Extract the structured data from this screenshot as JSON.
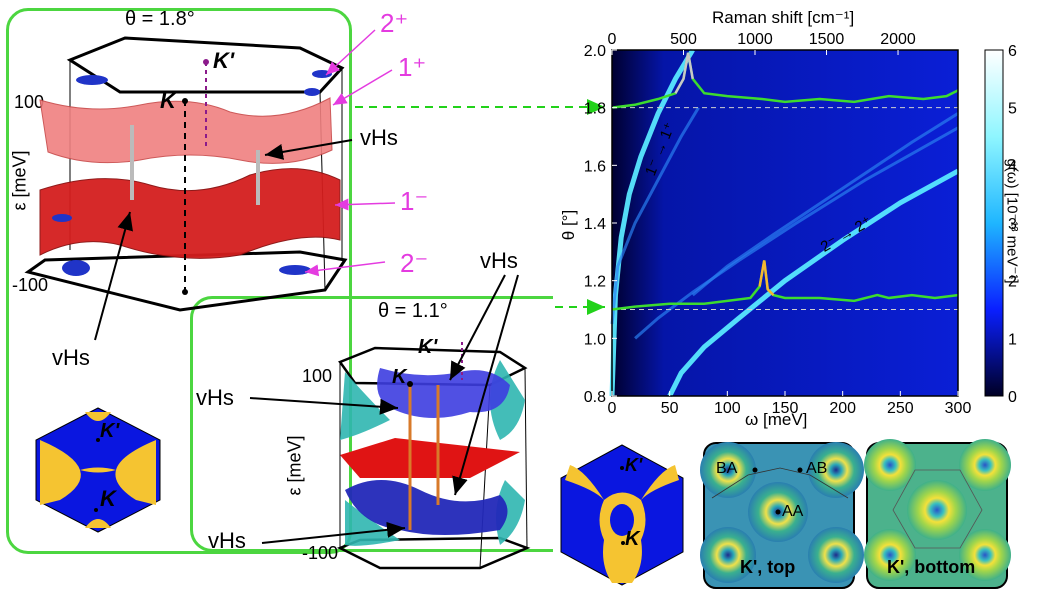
{
  "panel_a": {
    "title": "θ = 1.8°",
    "ylabel": "ε [meV]",
    "tick_top": "100",
    "tick_bottom": "-100",
    "k_label": "K",
    "kp_label": "K'",
    "band_labels": {
      "b2p": "2⁺",
      "b1p": "1⁺",
      "b1m": "1⁻",
      "b2m": "2⁻"
    },
    "vhs_upper": "vHs",
    "vhs_lower": "vHs",
    "bz_k": "K",
    "bz_kp": "K'"
  },
  "panel_b": {
    "title": "θ = 1.1°",
    "ylabel": "ε [meV]",
    "tick_top": "100",
    "tick_bottom": "-100",
    "k_label": "K",
    "kp_label": "K'",
    "vhs_top_right": "vHs",
    "vhs_mid_left": "vHs",
    "vhs_bottom_left": "vHs",
    "bz_k": "K",
    "bz_kp": "K'",
    "map_top_labels": {
      "ba": "BA",
      "ab": "AB",
      "aa": "AA",
      "caption": "K', top"
    },
    "map_bottom_caption": "K', bottom"
  },
  "chart_data": {
    "type": "heatmap",
    "title": "",
    "xlabel": "ω [meV]",
    "ylabel": "θ [°]",
    "top_xlabel": "Raman shift [cm⁻¹]",
    "xlim": [
      0,
      300
    ],
    "ylim": [
      0.8,
      2.0
    ],
    "x_ticks": [
      "0",
      "50",
      "100",
      "150",
      "200",
      "250",
      "300"
    ],
    "y_ticks": [
      "0.8",
      "1.0",
      "1.2",
      "1.4",
      "1.6",
      "1.8",
      "2.0"
    ],
    "top_ticks": [
      "0",
      "500",
      "1000",
      "1500",
      "2000"
    ],
    "colorbar": {
      "label": "g(ω) [10⁻¹³ meV⁻¹]",
      "range": [
        0,
        6
      ],
      "ticks": [
        "0",
        "1",
        "2",
        "3",
        "4",
        "5",
        "6"
      ],
      "colors": [
        "#000024",
        "#0a1fff",
        "#1fb6ff",
        "#8ff6ff",
        "#ffffff"
      ]
    },
    "reference_lines_theta": [
      1.8,
      1.1
    ],
    "transition_labels": {
      "upper": "1⁻ → 1⁺",
      "lower": "2⁻ → 2⁺"
    },
    "spectrum_1_8": {
      "omega": [
        0,
        20,
        40,
        55,
        62,
        66,
        70,
        80,
        100,
        130,
        150,
        180,
        210,
        240,
        270,
        290,
        300
      ],
      "theta": [
        1.8,
        1.81,
        1.83,
        1.85,
        1.9,
        1.99,
        1.9,
        1.85,
        1.84,
        1.83,
        1.82,
        1.83,
        1.82,
        1.84,
        1.83,
        1.84,
        1.86
      ]
    },
    "spectrum_1_1": {
      "omega": [
        0,
        20,
        50,
        80,
        100,
        120,
        128,
        132,
        135,
        140,
        150,
        180,
        210,
        230,
        240,
        260,
        280,
        300
      ],
      "theta": [
        1.1,
        1.11,
        1.12,
        1.12,
        1.13,
        1.14,
        1.18,
        1.27,
        1.17,
        1.15,
        1.14,
        1.14,
        1.13,
        1.15,
        1.14,
        1.15,
        1.14,
        1.15
      ]
    },
    "bands": [
      {
        "name": "1⁻ → 1⁺",
        "omega": [
          0,
          3,
          8,
          15,
          25,
          40,
          55,
          70
        ],
        "theta": [
          0.8,
          1.15,
          1.35,
          1.5,
          1.63,
          1.78,
          1.9,
          2.0
        ]
      },
      {
        "name": "2⁻ → 2⁺",
        "omega": [
          50,
          60,
          80,
          110,
          150,
          200,
          250,
          300
        ],
        "theta": [
          0.8,
          0.88,
          0.97,
          1.07,
          1.2,
          1.34,
          1.47,
          1.58
        ]
      },
      {
        "name": "",
        "omega": [
          0,
          5,
          20,
          40,
          60,
          75
        ],
        "theta": [
          1.05,
          1.25,
          1.4,
          1.55,
          1.7,
          1.8
        ]
      },
      {
        "name": "",
        "omega": [
          20,
          40,
          70,
          110,
          160,
          220,
          300
        ],
        "theta": [
          1.0,
          1.07,
          1.16,
          1.27,
          1.4,
          1.55,
          1.73
        ]
      },
      {
        "name": "",
        "omega": [
          70,
          100,
          140,
          200,
          260,
          300
        ],
        "theta": [
          1.15,
          1.25,
          1.36,
          1.52,
          1.68,
          1.78
        ]
      }
    ]
  }
}
